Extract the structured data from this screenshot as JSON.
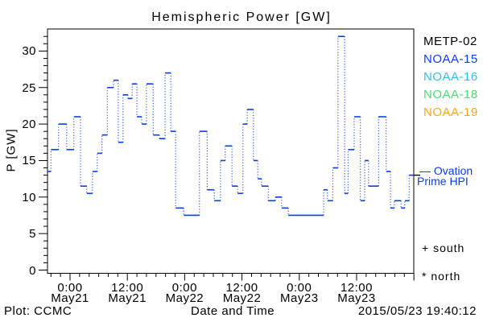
{
  "page": {
    "title": "Hemispheric Power [GW]"
  },
  "colors": {
    "background": "#ffffff",
    "axis": "#000000",
    "hpi_line": "#0a3cee",
    "metp02": "#000000",
    "noaa15": "#0a3cee",
    "noaa16": "#2ebff2",
    "noaa18": "#4ade70",
    "noaa19": "#ffa318"
  },
  "legend": {
    "satellites": [
      {
        "label": "METP-02",
        "color": "#000000"
      },
      {
        "label": "NOAA-15",
        "color": "#0a3cee"
      },
      {
        "label": "NOAA-16",
        "color": "#2ebff2"
      },
      {
        "label": "NOAA-18",
        "color": "#4ade70"
      },
      {
        "label": "NOAA-19",
        "color": "#ffa318"
      }
    ]
  },
  "annotations": {
    "ovation_label_line1": "— Ovation",
    "ovation_label_line2": "Prime HPI",
    "south_marker": "+ south",
    "north_marker": "* north"
  },
  "footer": {
    "plot_credit": "Plot: CCMC",
    "timestamp": "2015/05/23 19:40:12"
  },
  "chart_data": {
    "type": "line",
    "subtype": "step-stairs, dotted vertical connectors",
    "title": "Hemispheric Power [GW]",
    "xlabel": "Date and Time",
    "ylabel": "P [GW]",
    "ylim": [
      0,
      33
    ],
    "x_unit": "hours from 2015-05-21 00:00 UT",
    "xlim": [
      -4.7,
      72
    ],
    "grid": false,
    "legend_position": "right",
    "y_major_ticks": [
      0,
      5,
      10,
      15,
      20,
      25,
      30
    ],
    "y_minor_step": 1,
    "x_major_step_hours": 12,
    "x_minor_step_hours": 2,
    "x_tick_labels": [
      {
        "hour": 0,
        "time": "0:00",
        "date": "May21"
      },
      {
        "hour": 12,
        "time": "12:00",
        "date": "May21"
      },
      {
        "hour": 24,
        "time": "0:00",
        "date": "May22"
      },
      {
        "hour": 36,
        "time": "12:00",
        "date": "May22"
      },
      {
        "hour": 48,
        "time": "0:00",
        "date": "May23"
      },
      {
        "hour": 60,
        "time": "12:00",
        "date": "May23"
      }
    ],
    "series": [
      {
        "name": "Ovation Prime HPI (NOAA polar satellites)",
        "color": "#0a3cee",
        "end_hour": 72,
        "steps": [
          [
            -4.6,
            13.5
          ],
          [
            -4.0,
            16.5
          ],
          [
            -2.4,
            20
          ],
          [
            -0.7,
            16.5
          ],
          [
            0.8,
            21
          ],
          [
            2.2,
            11.5
          ],
          [
            3.5,
            10.5
          ],
          [
            4.7,
            13.5
          ],
          [
            5.7,
            16
          ],
          [
            6.7,
            18.5
          ],
          [
            7.8,
            25
          ],
          [
            9.1,
            26
          ],
          [
            10.1,
            17.5
          ],
          [
            11.1,
            24
          ],
          [
            12.1,
            23.5
          ],
          [
            13.0,
            25.5
          ],
          [
            14.0,
            21
          ],
          [
            15.0,
            20
          ],
          [
            16.0,
            25.5
          ],
          [
            17.4,
            18.5
          ],
          [
            18.7,
            18
          ],
          [
            19.9,
            27
          ],
          [
            21.1,
            19
          ],
          [
            22.1,
            8.5
          ],
          [
            23.8,
            7.5
          ],
          [
            27.1,
            19
          ],
          [
            28.7,
            11
          ],
          [
            30.2,
            9.5
          ],
          [
            31.5,
            15
          ],
          [
            32.5,
            17
          ],
          [
            33.9,
            11.5
          ],
          [
            35.1,
            10.5
          ],
          [
            36.2,
            20
          ],
          [
            37.1,
            22
          ],
          [
            38.4,
            15
          ],
          [
            39.3,
            12.5
          ],
          [
            40.1,
            11.5
          ],
          [
            41.5,
            9.5
          ],
          [
            43.0,
            10
          ],
          [
            44.3,
            8.5
          ],
          [
            45.7,
            7.5
          ],
          [
            53.1,
            11
          ],
          [
            53.9,
            9.5
          ],
          [
            55.0,
            14
          ],
          [
            56.1,
            32
          ],
          [
            57.5,
            10.5
          ],
          [
            58.2,
            16.5
          ],
          [
            59.5,
            21
          ],
          [
            60.8,
            9.5
          ],
          [
            61.7,
            15
          ],
          [
            62.5,
            11.5
          ],
          [
            64.6,
            21
          ],
          [
            66.2,
            13.5
          ],
          [
            67.1,
            8.5
          ],
          [
            67.9,
            9.5
          ],
          [
            69.3,
            8.5
          ],
          [
            70.1,
            9.5
          ],
          [
            71.0,
            13
          ]
        ]
      }
    ]
  }
}
